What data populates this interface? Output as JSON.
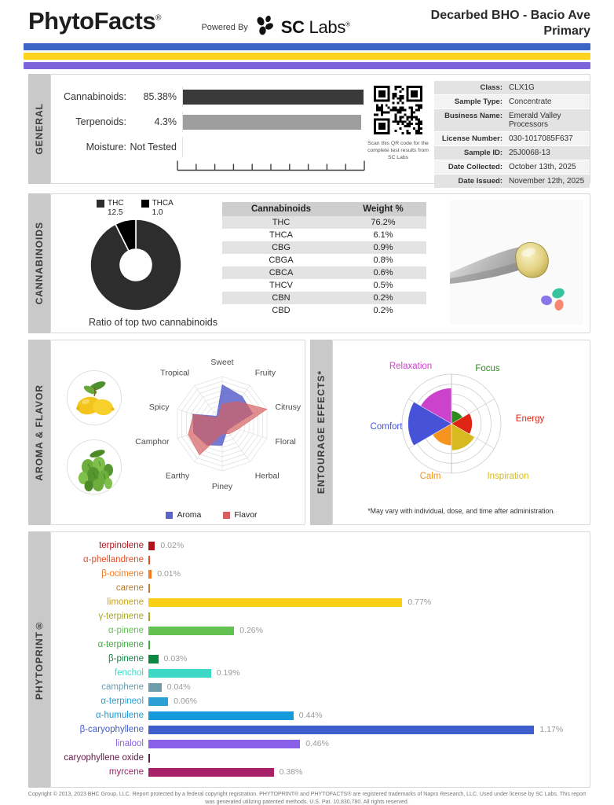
{
  "header": {
    "brand": "PhytoFacts",
    "brand_reg": "®",
    "powered_by": "Powered By",
    "sc_bold": "SC",
    "sc_light": " Labs",
    "sc_reg": "®",
    "title_line1": "Decarbed BHO - Bacio Ave",
    "title_line2": "Primary"
  },
  "colors": {
    "stripe_blue": "#3d63c6",
    "stripe_yellow": "#ffd31e",
    "stripe_purple": "#7f63dd"
  },
  "sections": {
    "general": "GENERAL",
    "cannabinoids": "CANNABINOIDS",
    "aroma": "AROMA & FLAVOR",
    "entourage": "ENTOURAGE EFFECTS*",
    "phytoprint": "PHYTOPRINT®"
  },
  "general": {
    "stats": [
      {
        "label": "Cannabinoids:",
        "value": "85.38%"
      },
      {
        "label": "Terpenoids:",
        "value": "4.3%"
      },
      {
        "label": "Moisture:",
        "value": "Not Tested"
      }
    ],
    "bar_dark": "#3a3a3a",
    "bar_gray": "#9e9e9e",
    "qr_caption": "Scan this QR code for the complete test results from SC Labs",
    "info_rows": [
      {
        "label": "Class:",
        "value": "CLX1G"
      },
      {
        "label": "Sample Type:",
        "value": "Concentrate"
      },
      {
        "label": "Business Name:",
        "value": "Emerald Valley Processors"
      },
      {
        "label": "License Number:",
        "value": "030-1017085F637"
      },
      {
        "label": "Sample ID:",
        "value": "25J0068-13"
      },
      {
        "label": "Date Collected:",
        "value": "October 13th, 2025"
      },
      {
        "label": "Date Issued:",
        "value": "November 12th, 2025"
      }
    ]
  },
  "cannabinoids": {
    "caption": "Ratio of top two cannabinoids",
    "donut": {
      "legend": [
        {
          "name": "THC",
          "value": "12.5"
        },
        {
          "name": "THCA",
          "value": "1.0"
        }
      ],
      "colors": [
        "#2d2d2d",
        "#000000"
      ]
    },
    "table": {
      "headers": [
        "Cannabinoids",
        "Weight %"
      ],
      "rows": [
        [
          "THC",
          "76.2%"
        ],
        [
          "THCA",
          "6.1%"
        ],
        [
          "CBG",
          "0.9%"
        ],
        [
          "CBGA",
          "0.8%"
        ],
        [
          "CBCA",
          "0.6%"
        ],
        [
          "THCV",
          "0.5%"
        ],
        [
          "CBN",
          "0.2%"
        ],
        [
          "CBD",
          "0.2%"
        ]
      ]
    }
  },
  "aroma_flavor": {
    "axes": [
      "Sweet",
      "Fruity",
      "Citrusy",
      "Floral",
      "Herbal",
      "Piney",
      "Earthy",
      "Camphor",
      "Spicy",
      "Tropical"
    ],
    "max": 10,
    "series": [
      {
        "name": "Aroma",
        "color": "#5c63cb",
        "opacity": 0.85,
        "values": [
          8.3,
          7.2,
          6.8,
          2.2,
          1.8,
          4.6,
          5.6,
          6.4,
          6.6,
          2.0
        ]
      },
      {
        "name": "Flavor",
        "color": "#d55f5f",
        "opacity": 0.7,
        "values": [
          4.2,
          5.8,
          10,
          3.6,
          2.6,
          2.2,
          8.2,
          7.6,
          6.4,
          1.6
        ]
      }
    ]
  },
  "entourage": {
    "max": 5,
    "effects": [
      {
        "name": "Focus",
        "color": "#2e8b22",
        "value": 1.3
      },
      {
        "name": "Energy",
        "color": "#e02414",
        "value": 2.1
      },
      {
        "name": "Inspiration",
        "color": "#d6ba1f",
        "value": 2.7
      },
      {
        "name": "Calm",
        "color": "#f5941e",
        "value": 2.2
      },
      {
        "name": "Comfort",
        "color": "#4653d8",
        "value": 4.4
      },
      {
        "name": "Relaxation",
        "color": "#ca43ca",
        "value": 3.6
      }
    ],
    "footnote": "*May vary with individual, dose, and time after administration."
  },
  "phytoprint": {
    "max_value": 1.17,
    "terpenes": [
      {
        "name": "terpinolene",
        "label": "0.02%",
        "value": 0.02,
        "color": "#b5121b"
      },
      {
        "name": "α-phellandrene",
        "label": "",
        "value": null,
        "color": "#e44d26"
      },
      {
        "name": "β-ocimene",
        "label": "0.01%",
        "value": 0.01,
        "color": "#f47b20"
      },
      {
        "name": "carene",
        "label": "",
        "value": null,
        "color": "#bf7c2a"
      },
      {
        "name": "limonene",
        "label": "0.77%",
        "value": 0.77,
        "color": "#c8a21e",
        "bar": "#fbcf16"
      },
      {
        "name": "γ-terpinene",
        "label": "",
        "value": null,
        "color": "#a8a823"
      },
      {
        "name": "α-pinene",
        "label": "0.26%",
        "value": 0.26,
        "color": "#62c151"
      },
      {
        "name": "α-terpinene",
        "label": "",
        "value": null,
        "color": "#3fae3f"
      },
      {
        "name": "β-pinene",
        "label": "0.03%",
        "value": 0.03,
        "color": "#0c8843"
      },
      {
        "name": "fenchol",
        "label": "0.19%",
        "value": 0.19,
        "color": "#3ed9c6"
      },
      {
        "name": "camphene",
        "label": "0.04%",
        "value": 0.04,
        "color": "#6e9cab"
      },
      {
        "name": "α-terpineol",
        "label": "0.06%",
        "value": 0.06,
        "color": "#2aa0d4"
      },
      {
        "name": "α-humulene",
        "label": "0.44%",
        "value": 0.44,
        "color": "#149bdc"
      },
      {
        "name": "β-caryophyllene",
        "label": "1.17%",
        "value": 1.17,
        "color": "#3f5ecd"
      },
      {
        "name": "linalool",
        "label": "0.46%",
        "value": 0.46,
        "color": "#8b60e8"
      },
      {
        "name": "caryophyllene oxide",
        "label": "",
        "value": null,
        "color": "#5f1d45"
      },
      {
        "name": "myrcene",
        "label": "0.38%",
        "value": 0.38,
        "color": "#a62168"
      }
    ]
  },
  "footer": {
    "text": "Copyright © 2013, 2023 BHC Group, LLC. Report protected by a federal copyright registration. PHYTOPRINT® and PHYTOFACTS® are registered trademarks of Napro Research, LLC. Used under license by SC Labs. This report was generated utilizing patented methods. U.S. Pat. 10,830,780. All rights reserved."
  },
  "chart_data": [
    {
      "type": "bar",
      "title": "General composition",
      "categories": [
        "Cannabinoids",
        "Terpenoids",
        "Moisture"
      ],
      "values": [
        85.38,
        4.3,
        null
      ],
      "value_labels": [
        "85.38%",
        "4.3%",
        "Not Tested"
      ]
    },
    {
      "type": "pie",
      "title": "Ratio of top two cannabinoids",
      "categories": [
        "THC",
        "THCA"
      ],
      "values": [
        12.5,
        1.0
      ]
    },
    {
      "type": "table",
      "title": "Cannabinoids Weight %",
      "columns": [
        "Cannabinoids",
        "Weight %"
      ],
      "rows": [
        [
          "THC",
          "76.2%"
        ],
        [
          "THCA",
          "6.1%"
        ],
        [
          "CBG",
          "0.9%"
        ],
        [
          "CBGA",
          "0.8%"
        ],
        [
          "CBCA",
          "0.6%"
        ],
        [
          "THCV",
          "0.5%"
        ],
        [
          "CBN",
          "0.2%"
        ],
        [
          "CBD",
          "0.2%"
        ]
      ]
    },
    {
      "type": "radar",
      "title": "Aroma & Flavor",
      "categories": [
        "Sweet",
        "Fruity",
        "Citrusy",
        "Floral",
        "Herbal",
        "Piney",
        "Earthy",
        "Camphor",
        "Spicy",
        "Tropical"
      ],
      "series": [
        {
          "name": "Aroma",
          "values": [
            8.3,
            7.2,
            6.8,
            2.2,
            1.8,
            4.6,
            5.6,
            6.4,
            6.6,
            2.0
          ]
        },
        {
          "name": "Flavor",
          "values": [
            4.2,
            5.8,
            10,
            3.6,
            2.6,
            2.2,
            8.2,
            7.6,
            6.4,
            1.6
          ]
        }
      ],
      "ylim": [
        0,
        10
      ],
      "legend_position": "bottom"
    },
    {
      "type": "polar",
      "title": "Entourage Effects",
      "categories": [
        "Focus",
        "Energy",
        "Inspiration",
        "Calm",
        "Comfort",
        "Relaxation"
      ],
      "values": [
        1.3,
        2.1,
        2.7,
        2.2,
        4.4,
        3.6
      ],
      "ylim": [
        0,
        5
      ]
    },
    {
      "type": "bar",
      "title": "PHYTOPRINT terpenes (%)",
      "categories": [
        "terpinolene",
        "α-phellandrene",
        "β-ocimene",
        "carene",
        "limonene",
        "γ-terpinene",
        "α-pinene",
        "α-terpinene",
        "β-pinene",
        "fenchol",
        "camphene",
        "α-terpineol",
        "α-humulene",
        "β-caryophyllene",
        "linalool",
        "caryophyllene oxide",
        "myrcene"
      ],
      "values": [
        0.02,
        null,
        0.01,
        null,
        0.77,
        null,
        0.26,
        null,
        0.03,
        0.19,
        0.04,
        0.06,
        0.44,
        1.17,
        0.46,
        null,
        0.38
      ],
      "xlim": [
        0,
        1.3
      ]
    }
  ]
}
